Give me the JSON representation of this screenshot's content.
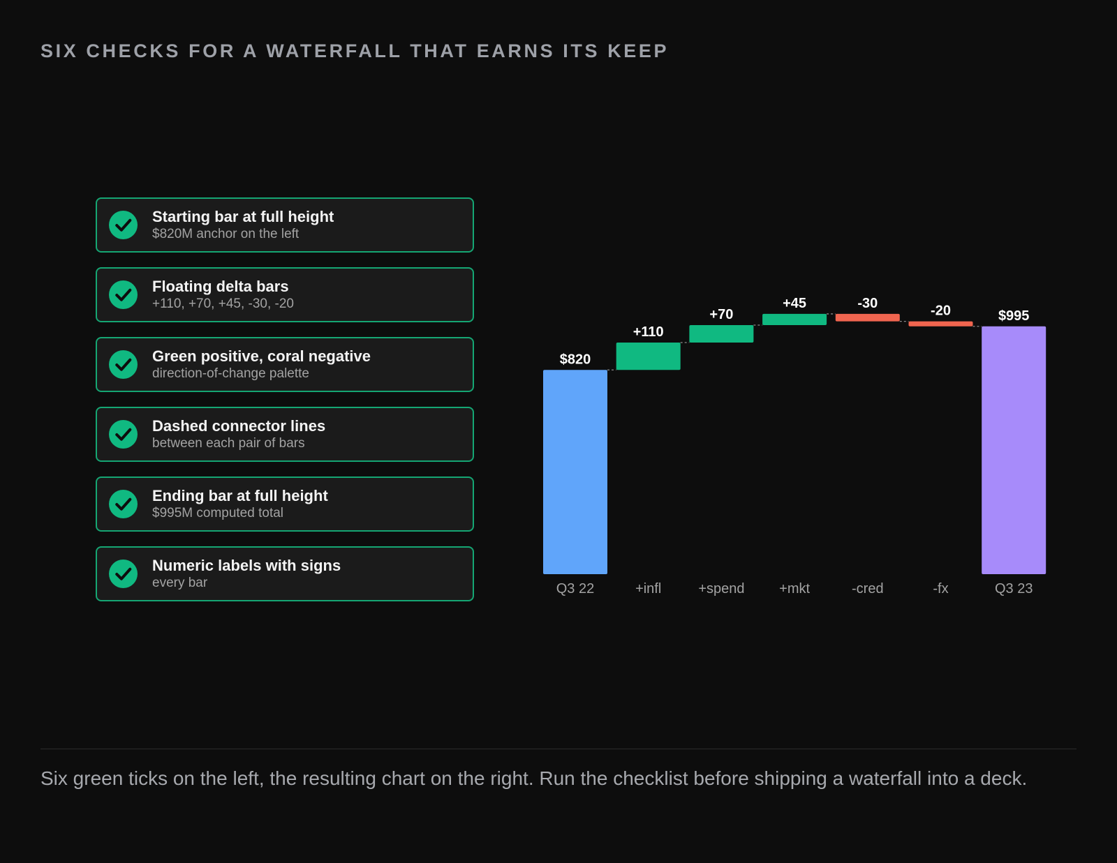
{
  "title": "SIX CHECKS FOR A WATERFALL THAT EARNS ITS KEEP",
  "checks": [
    {
      "title": "Starting bar at full height",
      "sub": "$820M anchor on the left"
    },
    {
      "title": "Floating delta bars",
      "sub": "+110, +70, +45, -30, -20"
    },
    {
      "title": "Green positive, coral negative",
      "sub": "direction-of-change palette"
    },
    {
      "title": "Dashed connector lines",
      "sub": "between each pair of bars"
    },
    {
      "title": "Ending bar at full height",
      "sub": "$995M computed total"
    },
    {
      "title": "Numeric labels with signs",
      "sub": "every bar"
    }
  ],
  "caption": "Six green ticks on the left, the resulting chart on the right. Run the checklist before shipping a waterfall into a deck.",
  "colors": {
    "accent_green": "#10b981",
    "coral": "#f0654f",
    "start_blue": "#60a5fa",
    "end_purple": "#a78bfa",
    "background": "#0d0d0d"
  },
  "icons": {
    "check": "check-circle-icon"
  },
  "chart_data": {
    "type": "bar",
    "subtype": "waterfall",
    "categories": [
      "Q3 22",
      "+infl",
      "+spend",
      "+mkt",
      "-cred",
      "-fx",
      "Q3 23"
    ],
    "values": [
      820,
      110,
      70,
      45,
      -30,
      -20,
      995
    ],
    "kinds": [
      "total",
      "delta",
      "delta",
      "delta",
      "delta",
      "delta",
      "total"
    ],
    "labels": [
      "$820",
      "+110",
      "+70",
      "+45",
      "-30",
      "-20",
      "$995"
    ],
    "ylim": [
      0,
      1000
    ],
    "grid": false,
    "connectors": "dashed"
  }
}
